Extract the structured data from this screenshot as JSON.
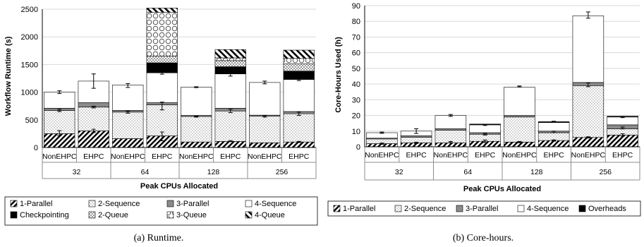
{
  "chart_data": [
    {
      "type": "bar",
      "stacked": true,
      "caption": "(a) Runtime.",
      "ylabel": "Workflow Runtime (s)",
      "xlabel": "Peak CPUs Allocated",
      "ylim": [
        0,
        2500
      ],
      "yticks": [
        0,
        500,
        1000,
        1500,
        2000,
        2500
      ],
      "groups": [
        "32",
        "64",
        "128",
        "256"
      ],
      "categories": [
        "NonEHPC",
        "EHPC",
        "NonEHPC",
        "EHPC",
        "NonEHPC",
        "EHPC",
        "NonEHPC",
        "EHPC"
      ],
      "legend_position": "bottom",
      "series": [
        {
          "name": "1-Parallel",
          "values": [
            250,
            300,
            160,
            210,
            100,
            110,
            85,
            100
          ]
        },
        {
          "name": "2-Sequence",
          "values": [
            420,
            430,
            480,
            560,
            460,
            550,
            480,
            510
          ]
        },
        {
          "name": "3-Parallel",
          "values": [
            40,
            80,
            30,
            40,
            20,
            50,
            20,
            40
          ]
        },
        {
          "name": "4-Sequence",
          "values": [
            290,
            390,
            460,
            540,
            510,
            620,
            590,
            580
          ]
        },
        {
          "name": "Checkpointing",
          "values": [
            0,
            0,
            0,
            180,
            0,
            130,
            0,
            150
          ]
        },
        {
          "name": "2-Queue",
          "values": [
            0,
            0,
            0,
            120,
            0,
            110,
            0,
            130
          ]
        },
        {
          "name": "3-Queue",
          "values": [
            0,
            0,
            0,
            790,
            0,
            50,
            0,
            100
          ]
        },
        {
          "name": "4-Queue",
          "values": [
            0,
            0,
            0,
            80,
            0,
            150,
            0,
            150
          ]
        }
      ],
      "error_bars": [
        {
          "at": [
            260,
            300,
            null,
            200,
            null,
            115,
            null,
            100
          ],
          "err": [
            45,
            30,
            0,
            80,
            0,
            10,
            0,
            10
          ]
        },
        {
          "at": [
            670,
            730,
            640,
            750,
            560,
            660,
            565,
            610
          ],
          "err": [
            20,
            15,
            20,
            70,
            10,
            30,
            15,
            30
          ]
        },
        {
          "at": [
            1000,
            1200,
            1120,
            1350,
            1090,
            1320,
            1175,
            1230
          ],
          "err": [
            25,
            130,
            35,
            25,
            8,
            30,
            25,
            20
          ]
        }
      ]
    },
    {
      "type": "bar",
      "stacked": true,
      "caption": "(b) Core-hours.",
      "ylabel": "Core-Hours Used (h)",
      "xlabel": "Peak CPUs Allocated",
      "ylim": [
        0,
        90
      ],
      "yticks": [
        0,
        10,
        20,
        30,
        40,
        50,
        60,
        70,
        80,
        90
      ],
      "groups": [
        "32",
        "64",
        "128",
        "256"
      ],
      "categories": [
        "NonEHPC",
        "EHPC",
        "NonEHPC",
        "EHPC",
        "NonEHPC",
        "EHPC",
        "NonEHPC",
        "EHPC"
      ],
      "legend_position": "bottom",
      "series": [
        {
          "name": "1-Parallel",
          "values": [
            2,
            2.5,
            2.5,
            3.5,
            3,
            4,
            6,
            7.5
          ]
        },
        {
          "name": "2-Sequence",
          "values": [
            3,
            3.5,
            8,
            4.5,
            16,
            5,
            33,
            4
          ]
        },
        {
          "name": "3-Parallel",
          "values": [
            0.5,
            1,
            1,
            1,
            1,
            1,
            2,
            2.5
          ]
        },
        {
          "name": "4-Sequence",
          "values": [
            3.5,
            3,
            8.5,
            5,
            18,
            5.5,
            42.5,
            5
          ]
        },
        {
          "name": "Overheads",
          "values": [
            0,
            0,
            0,
            0.5,
            0,
            0.5,
            0,
            0.5
          ]
        }
      ],
      "error_bars": [
        {
          "at": [
            2,
            2.5,
            3,
            3.5,
            3,
            4,
            6,
            7.5
          ],
          "err": [
            0.4,
            0.4,
            0.4,
            0.8,
            0.4,
            0.4,
            0.4,
            0.8
          ]
        },
        {
          "at": [
            null,
            null,
            null,
            8,
            null,
            9.5,
            39.5,
            12
          ],
          "err": [
            0,
            0,
            0,
            0.5,
            0,
            0.5,
            1.2,
            0.6
          ]
        },
        {
          "at": [
            9,
            10,
            20,
            14,
            38.5,
            16,
            84,
            19
          ],
          "err": [
            0.4,
            1.5,
            0.6,
            0.4,
            0.3,
            0.3,
            2,
            0.4
          ]
        }
      ]
    }
  ]
}
